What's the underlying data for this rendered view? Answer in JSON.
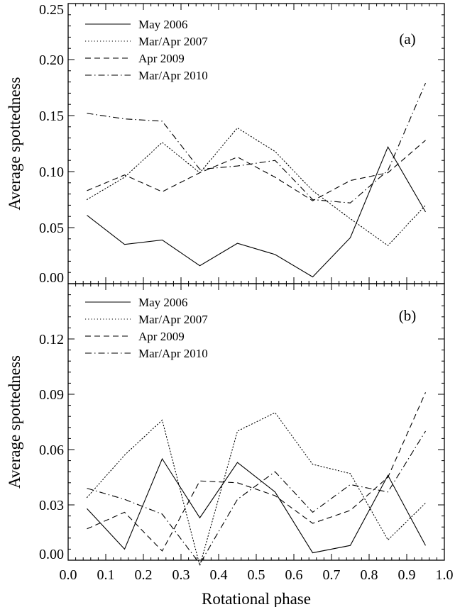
{
  "chart_data": [
    {
      "type": "line",
      "panel_label": "(a)",
      "ylabel": "Average spottedness",
      "xlim": [
        0.0,
        1.0
      ],
      "ylim": [
        0.0,
        0.25
      ],
      "x_ticks": [
        "0.0",
        "0.1",
        "0.2",
        "0.3",
        "0.4",
        "0.5",
        "0.6",
        "0.7",
        "0.8",
        "0.9",
        "1.0"
      ],
      "y_ticks": [
        "0.00",
        "0.05",
        "0.10",
        "0.15",
        "0.20",
        "0.25"
      ],
      "legend_position": "top-left",
      "x": [
        0.05,
        0.15,
        0.25,
        0.35,
        0.45,
        0.55,
        0.65,
        0.75,
        0.85,
        0.95
      ],
      "series": [
        {
          "name": "May 2006",
          "style": "solid",
          "values": [
            0.061,
            0.035,
            0.039,
            0.016,
            0.036,
            0.026,
            0.006,
            0.041,
            0.122,
            0.064
          ]
        },
        {
          "name": "Mar/Apr 2007",
          "style": "dotted",
          "values": [
            0.075,
            0.095,
            0.126,
            0.099,
            0.139,
            0.118,
            0.083,
            0.058,
            0.034,
            0.07
          ]
        },
        {
          "name": "Apr 2009",
          "style": "dashed",
          "values": [
            0.083,
            0.097,
            0.082,
            0.099,
            0.113,
            0.095,
            0.074,
            0.092,
            0.099,
            0.128
          ]
        },
        {
          "name": "Mar/Apr 2010",
          "style": "dashdot",
          "values": [
            0.152,
            0.147,
            0.145,
            0.102,
            0.105,
            0.11,
            0.075,
            0.072,
            0.101,
            0.179
          ]
        }
      ]
    },
    {
      "type": "line",
      "panel_label": "(b)",
      "ylabel": "Average spottedness",
      "xlabel": "Rotational phase",
      "xlim": [
        0.0,
        1.0
      ],
      "ylim": [
        0.0,
        0.15
      ],
      "x_ticks": [
        "0.0",
        "0.1",
        "0.2",
        "0.3",
        "0.4",
        "0.5",
        "0.6",
        "0.7",
        "0.8",
        "0.9",
        "1.0"
      ],
      "y_ticks": [
        "0.00",
        "0.03",
        "0.06",
        "0.09",
        "0.12"
      ],
      "legend_position": "top-left",
      "x": [
        0.05,
        0.15,
        0.25,
        0.35,
        0.45,
        0.55,
        0.65,
        0.75,
        0.85,
        0.95
      ],
      "series": [
        {
          "name": "May 2006",
          "style": "solid",
          "values": [
            0.028,
            0.006,
            0.055,
            0.023,
            0.053,
            0.037,
            0.004,
            0.008,
            0.046,
            0.008
          ]
        },
        {
          "name": "Mar/Apr 2007",
          "style": "dotted",
          "values": [
            0.034,
            0.057,
            0.076,
            -0.003,
            0.07,
            0.08,
            0.052,
            0.047,
            0.011,
            0.031
          ]
        },
        {
          "name": "Apr 2009",
          "style": "dashed",
          "values": [
            0.017,
            0.026,
            0.005,
            0.043,
            0.042,
            0.035,
            0.02,
            0.027,
            0.045,
            0.091
          ]
        },
        {
          "name": "Mar/Apr 2010",
          "style": "dashdot",
          "values": [
            0.039,
            0.033,
            0.025,
            -0.002,
            0.033,
            0.048,
            0.026,
            0.041,
            0.037,
            0.07
          ]
        }
      ]
    }
  ]
}
